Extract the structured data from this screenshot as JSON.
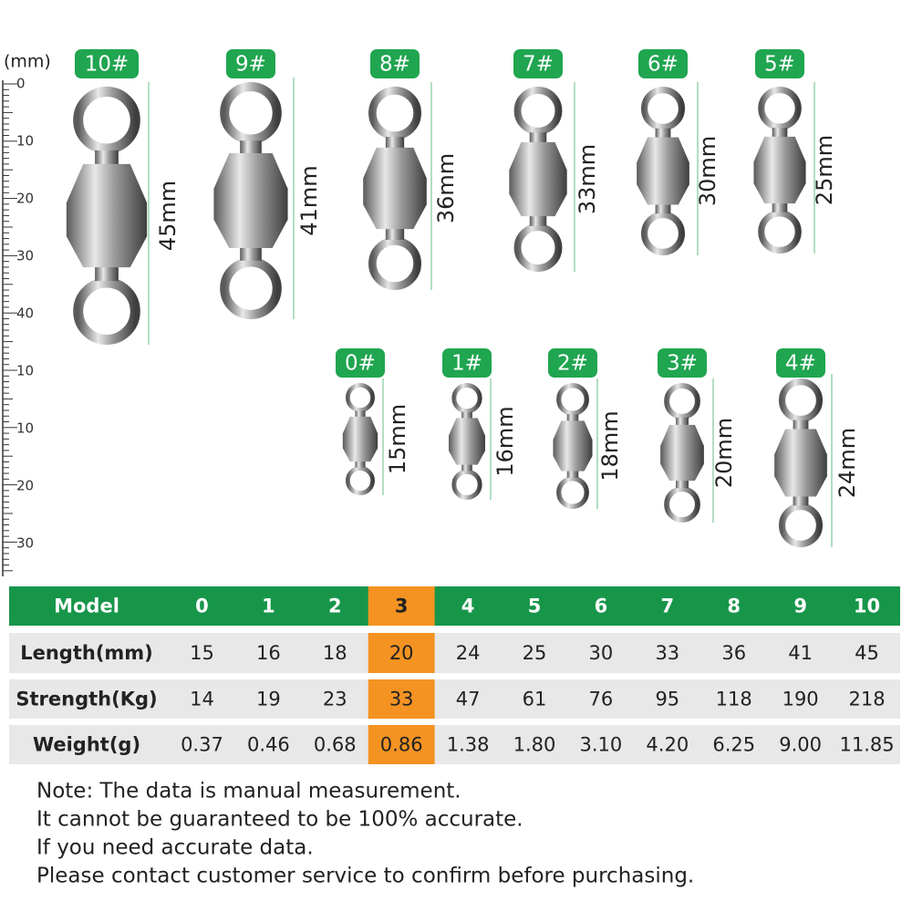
{
  "ruler": {
    "unit": "(mm)",
    "labels": [
      "0",
      "10",
      "20",
      "30",
      "40",
      "10",
      "10",
      "20",
      "30"
    ]
  },
  "swivels": [
    {
      "model": "10#",
      "length": "45mm"
    },
    {
      "model": "9#",
      "length": "41mm"
    },
    {
      "model": "8#",
      "length": "36mm"
    },
    {
      "model": "7#",
      "length": "33mm"
    },
    {
      "model": "6#",
      "length": "30mm"
    },
    {
      "model": "5#",
      "length": "25mm"
    },
    {
      "model": "0#",
      "length": "15mm"
    },
    {
      "model": "1#",
      "length": "16mm"
    },
    {
      "model": "2#",
      "length": "18mm"
    },
    {
      "model": "3#",
      "length": "20mm"
    },
    {
      "model": "4#",
      "length": "24mm"
    }
  ],
  "table": {
    "header": [
      "Model",
      "0",
      "1",
      "2",
      "3",
      "4",
      "5",
      "6",
      "7",
      "8",
      "9",
      "10"
    ],
    "rows": [
      [
        "Length(mm)",
        "15",
        "16",
        "18",
        "20",
        "24",
        "25",
        "30",
        "33",
        "36",
        "41",
        "45"
      ],
      [
        "Strength(Kg)",
        "14",
        "19",
        "23",
        "33",
        "47",
        "61",
        "76",
        "95",
        "118",
        "190",
        "218"
      ],
      [
        "Weight(g)",
        "0.37",
        "0.46",
        "0.68",
        "0.86",
        "1.38",
        "1.80",
        "3.10",
        "4.20",
        "6.25",
        "9.00",
        "11.85"
      ]
    ]
  },
  "notes": [
    "Note: The data is manual measurement.",
    "It cannot be guaranteed to be 100% accurate.",
    "If you need accurate data.",
    "Please contact customer service to confirm before purchasing."
  ]
}
